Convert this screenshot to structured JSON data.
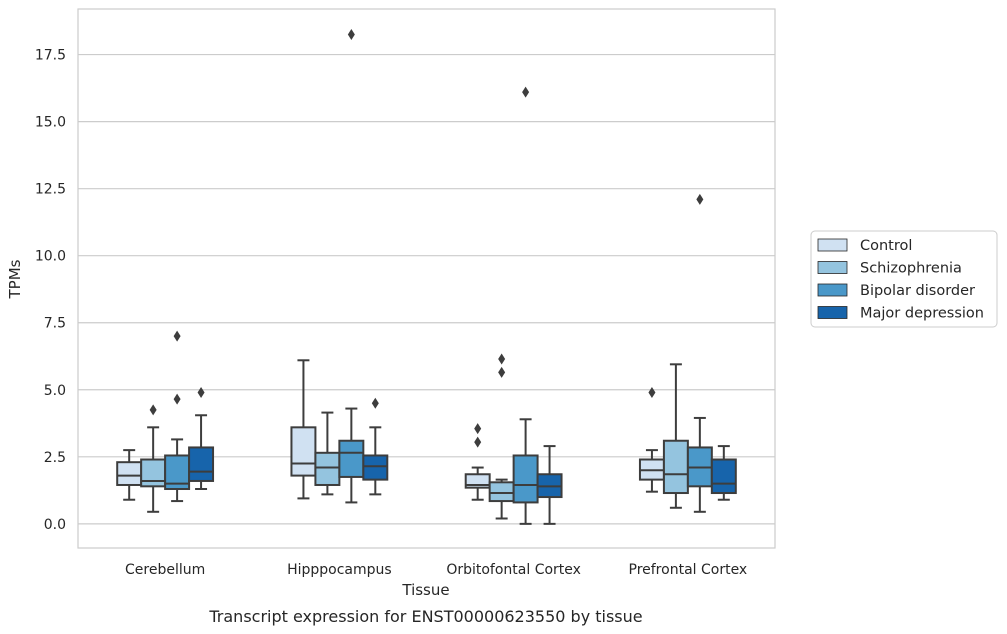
{
  "caption": "Transcript expression for ENST00000623550 by tissue",
  "chart_data": {
    "type": "box",
    "title": "",
    "xlabel": "Tissue",
    "ylabel": "TPMs",
    "ylim": [
      -0.9,
      19.2
    ],
    "yticks": [
      "0.0",
      "2.5",
      "5.0",
      "7.5",
      "10.0",
      "12.5",
      "15.0",
      "17.5"
    ],
    "ytick_values": [
      0,
      2.5,
      5,
      7.5,
      10,
      12.5,
      15,
      17.5
    ],
    "grid": true,
    "legend_position": "right",
    "categories": [
      "Cerebellum",
      "Hipppocampus",
      "Orbitofontal Cortex",
      "Prefrontal Cortex"
    ],
    "series": [
      {
        "name": "Control",
        "color": "#d0e1f2",
        "boxes": [
          {
            "whislo": 0.9,
            "q1": 1.45,
            "med": 1.8,
            "q3": 2.3,
            "whishi": 2.75,
            "fliers": []
          },
          {
            "whislo": 0.95,
            "q1": 1.8,
            "med": 2.25,
            "q3": 3.6,
            "whishi": 6.1,
            "fliers": []
          },
          {
            "whislo": 0.9,
            "q1": 1.35,
            "med": 1.45,
            "q3": 1.85,
            "whishi": 2.1,
            "fliers": [
              3.05,
              3.55
            ]
          },
          {
            "whislo": 1.2,
            "q1": 1.65,
            "med": 2.0,
            "q3": 2.4,
            "whishi": 2.75,
            "fliers": [
              4.9
            ]
          }
        ]
      },
      {
        "name": "Schizophrenia",
        "color": "#94c4df",
        "boxes": [
          {
            "whislo": 0.45,
            "q1": 1.4,
            "med": 1.6,
            "q3": 2.4,
            "whishi": 3.6,
            "fliers": [
              4.25
            ]
          },
          {
            "whislo": 1.1,
            "q1": 1.45,
            "med": 2.1,
            "q3": 2.65,
            "whishi": 4.15,
            "fliers": []
          },
          {
            "whislo": 0.2,
            "q1": 0.85,
            "med": 1.15,
            "q3": 1.55,
            "whishi": 1.65,
            "fliers": [
              5.65,
              6.15
            ]
          },
          {
            "whislo": 0.6,
            "q1": 1.15,
            "med": 1.85,
            "q3": 3.1,
            "whishi": 5.95,
            "fliers": []
          }
        ]
      },
      {
        "name": "Bipolar disorder",
        "color": "#4a98c9",
        "boxes": [
          {
            "whislo": 0.85,
            "q1": 1.3,
            "med": 1.5,
            "q3": 2.55,
            "whishi": 3.15,
            "fliers": [
              4.65,
              7.0
            ]
          },
          {
            "whislo": 0.8,
            "q1": 1.75,
            "med": 2.65,
            "q3": 3.1,
            "whishi": 4.3,
            "fliers": [
              18.25
            ]
          },
          {
            "whislo": 0.0,
            "q1": 0.8,
            "med": 1.45,
            "q3": 2.55,
            "whishi": 3.9,
            "fliers": [
              16.1
            ]
          },
          {
            "whislo": 0.45,
            "q1": 1.4,
            "med": 2.1,
            "q3": 2.85,
            "whishi": 3.95,
            "fliers": [
              12.1
            ]
          }
        ]
      },
      {
        "name": "Major depression",
        "color": "#1764ab",
        "boxes": [
          {
            "whislo": 1.3,
            "q1": 1.6,
            "med": 1.95,
            "q3": 2.85,
            "whishi": 4.05,
            "fliers": [
              4.9
            ]
          },
          {
            "whislo": 1.1,
            "q1": 1.65,
            "med": 2.15,
            "q3": 2.55,
            "whishi": 3.6,
            "fliers": [
              4.5
            ]
          },
          {
            "whislo": 0.0,
            "q1": 1.0,
            "med": 1.4,
            "q3": 1.85,
            "whishi": 2.9,
            "fliers": []
          },
          {
            "whislo": 0.9,
            "q1": 1.15,
            "med": 1.5,
            "q3": 2.4,
            "whishi": 2.9,
            "fliers": []
          }
        ]
      }
    ]
  }
}
